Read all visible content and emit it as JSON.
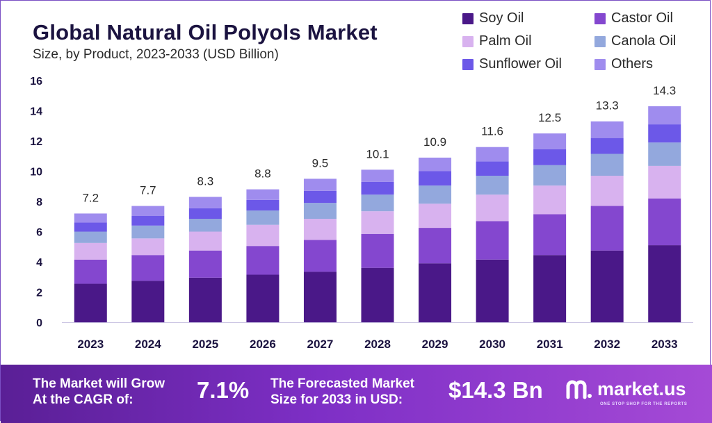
{
  "header": {
    "title": "Global Natural Oil Polyols Market",
    "subtitle": "Size, by Product, 2023-2033 (USD Billion)"
  },
  "colors": {
    "soy": "#4a1888",
    "castor": "#8447cf",
    "palm": "#d8b2ef",
    "canola": "#93a8dd",
    "sunflower": "#6c58e8",
    "others": "#9f8cee",
    "text": "#1b1340"
  },
  "chart_data": {
    "type": "bar",
    "stacked": true,
    "title": "Global Natural Oil Polyols Market",
    "subtitle": "Size, by Product, 2023-2033 (USD Billion)",
    "xlabel": "",
    "ylabel": "",
    "ylim": [
      0,
      16
    ],
    "yticks": [
      "0",
      "2",
      "4",
      "6",
      "8",
      "10",
      "12",
      "14",
      "16"
    ],
    "grid": false,
    "legend_position": "top-right",
    "categories": [
      "2023",
      "2024",
      "2025",
      "2026",
      "2027",
      "2028",
      "2029",
      "2030",
      "2031",
      "2032",
      "2033"
    ],
    "totals": [
      "7.2",
      "7.7",
      "8.3",
      "8.8",
      "9.5",
      "10.1",
      "10.9",
      "11.6",
      "12.5",
      "13.3",
      "14.3"
    ],
    "series": [
      {
        "name": "Soy Oil",
        "color": "#4a1888",
        "values": [
          2.55,
          2.75,
          2.95,
          3.15,
          3.35,
          3.6,
          3.9,
          4.15,
          4.45,
          4.75,
          5.1
        ]
      },
      {
        "name": "Castor Oil",
        "color": "#8447cf",
        "values": [
          1.6,
          1.7,
          1.8,
          1.9,
          2.1,
          2.25,
          2.35,
          2.55,
          2.7,
          2.95,
          3.1
        ]
      },
      {
        "name": "Palm Oil",
        "color": "#d8b2ef",
        "values": [
          1.1,
          1.1,
          1.25,
          1.4,
          1.4,
          1.5,
          1.6,
          1.75,
          1.9,
          2.0,
          2.15
        ]
      },
      {
        "name": "Canola Oil",
        "color": "#93a8dd",
        "values": [
          0.75,
          0.85,
          0.85,
          0.95,
          1.05,
          1.1,
          1.2,
          1.25,
          1.35,
          1.45,
          1.55
        ]
      },
      {
        "name": "Sunflower Oil",
        "color": "#6c58e8",
        "values": [
          0.6,
          0.65,
          0.7,
          0.7,
          0.8,
          0.85,
          0.95,
          0.95,
          1.05,
          1.05,
          1.2
        ]
      },
      {
        "name": "Others",
        "color": "#9f8cee",
        "values": [
          0.6,
          0.65,
          0.75,
          0.7,
          0.8,
          0.8,
          0.9,
          0.95,
          1.05,
          1.1,
          1.2
        ]
      }
    ]
  },
  "legend": {
    "items": [
      {
        "label": "Soy Oil",
        "color": "#4a1888"
      },
      {
        "label": "Castor Oil",
        "color": "#8447cf"
      },
      {
        "label": "Palm Oil",
        "color": "#d8b2ef"
      },
      {
        "label": "Canola Oil",
        "color": "#93a8dd"
      },
      {
        "label": "Sunflower Oil",
        "color": "#6c58e8"
      },
      {
        "label": "Others",
        "color": "#9f8cee"
      }
    ]
  },
  "footer": {
    "cagr_label_line1": "The Market will Grow",
    "cagr_label_line2": "At the CAGR of:",
    "cagr_value": "7.1%",
    "forecast_label_line1": "The Forecasted Market",
    "forecast_label_line2": "Size for 2033 in USD:",
    "forecast_value": "$14.3 Bn",
    "brand_name": "market.us",
    "brand_tagline": "ONE STOP SHOP FOR THE REPORTS"
  }
}
